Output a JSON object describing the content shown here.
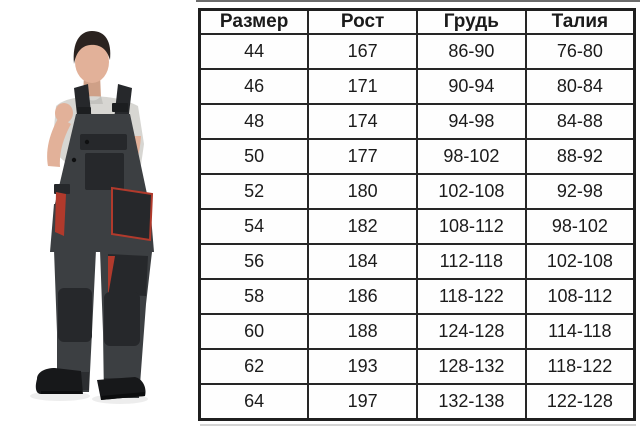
{
  "photo": {
    "description": "man wearing dark bib overalls with red trim, gray t-shirt, black work boots",
    "colors": {
      "hair": "#2b2320",
      "skin": "#e2b199",
      "skin_shadow": "#cfa087",
      "tshirt": "#d7d6d2",
      "tshirt_shadow": "#c0bfbb",
      "overall": "#3c3f42",
      "overall_dark": "#26282b",
      "trim": "#b13a2c",
      "boots": "#17181a"
    }
  },
  "size_table": {
    "headers": [
      "Размер",
      "Рост",
      "Грудь",
      "Талия"
    ],
    "rows": [
      [
        "44",
        "167",
        "86-90",
        "76-80"
      ],
      [
        "46",
        "171",
        "90-94",
        "80-84"
      ],
      [
        "48",
        "174",
        "94-98",
        "84-88"
      ],
      [
        "50",
        "177",
        "98-102",
        "88-92"
      ],
      [
        "52",
        "180",
        "102-108",
        "92-98"
      ],
      [
        "54",
        "182",
        "108-112",
        "98-102"
      ],
      [
        "56",
        "184",
        "112-118",
        "102-108"
      ],
      [
        "58",
        "186",
        "118-122",
        "108-112"
      ],
      [
        "60",
        "188",
        "124-128",
        "114-118"
      ],
      [
        "62",
        "193",
        "128-132",
        "118-122"
      ],
      [
        "64",
        "197",
        "132-138",
        "122-128"
      ]
    ]
  }
}
